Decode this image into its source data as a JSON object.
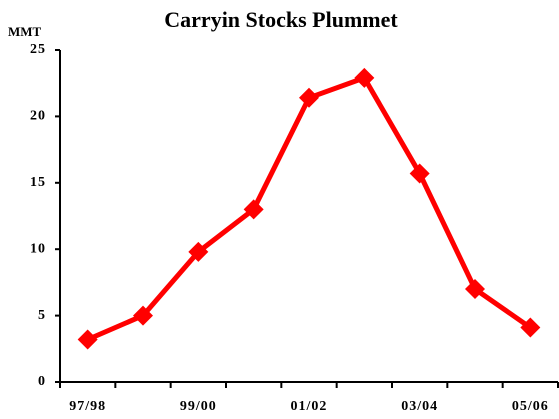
{
  "chart_data": {
    "type": "line",
    "title": "Carryin Stocks Plummet",
    "y_label": "MMT",
    "categories": [
      "97/98",
      null,
      "99/00",
      null,
      "01/02",
      null,
      "03/04",
      null,
      "05/06"
    ],
    "values": [
      3.2,
      5.0,
      9.8,
      13.0,
      21.4,
      22.9,
      15.7,
      7.0,
      4.1
    ],
    "color": "#ff0000",
    "ylim": [
      0,
      25
    ],
    "yticks": [
      0,
      5,
      10,
      15,
      20,
      25
    ],
    "grid": false
  }
}
